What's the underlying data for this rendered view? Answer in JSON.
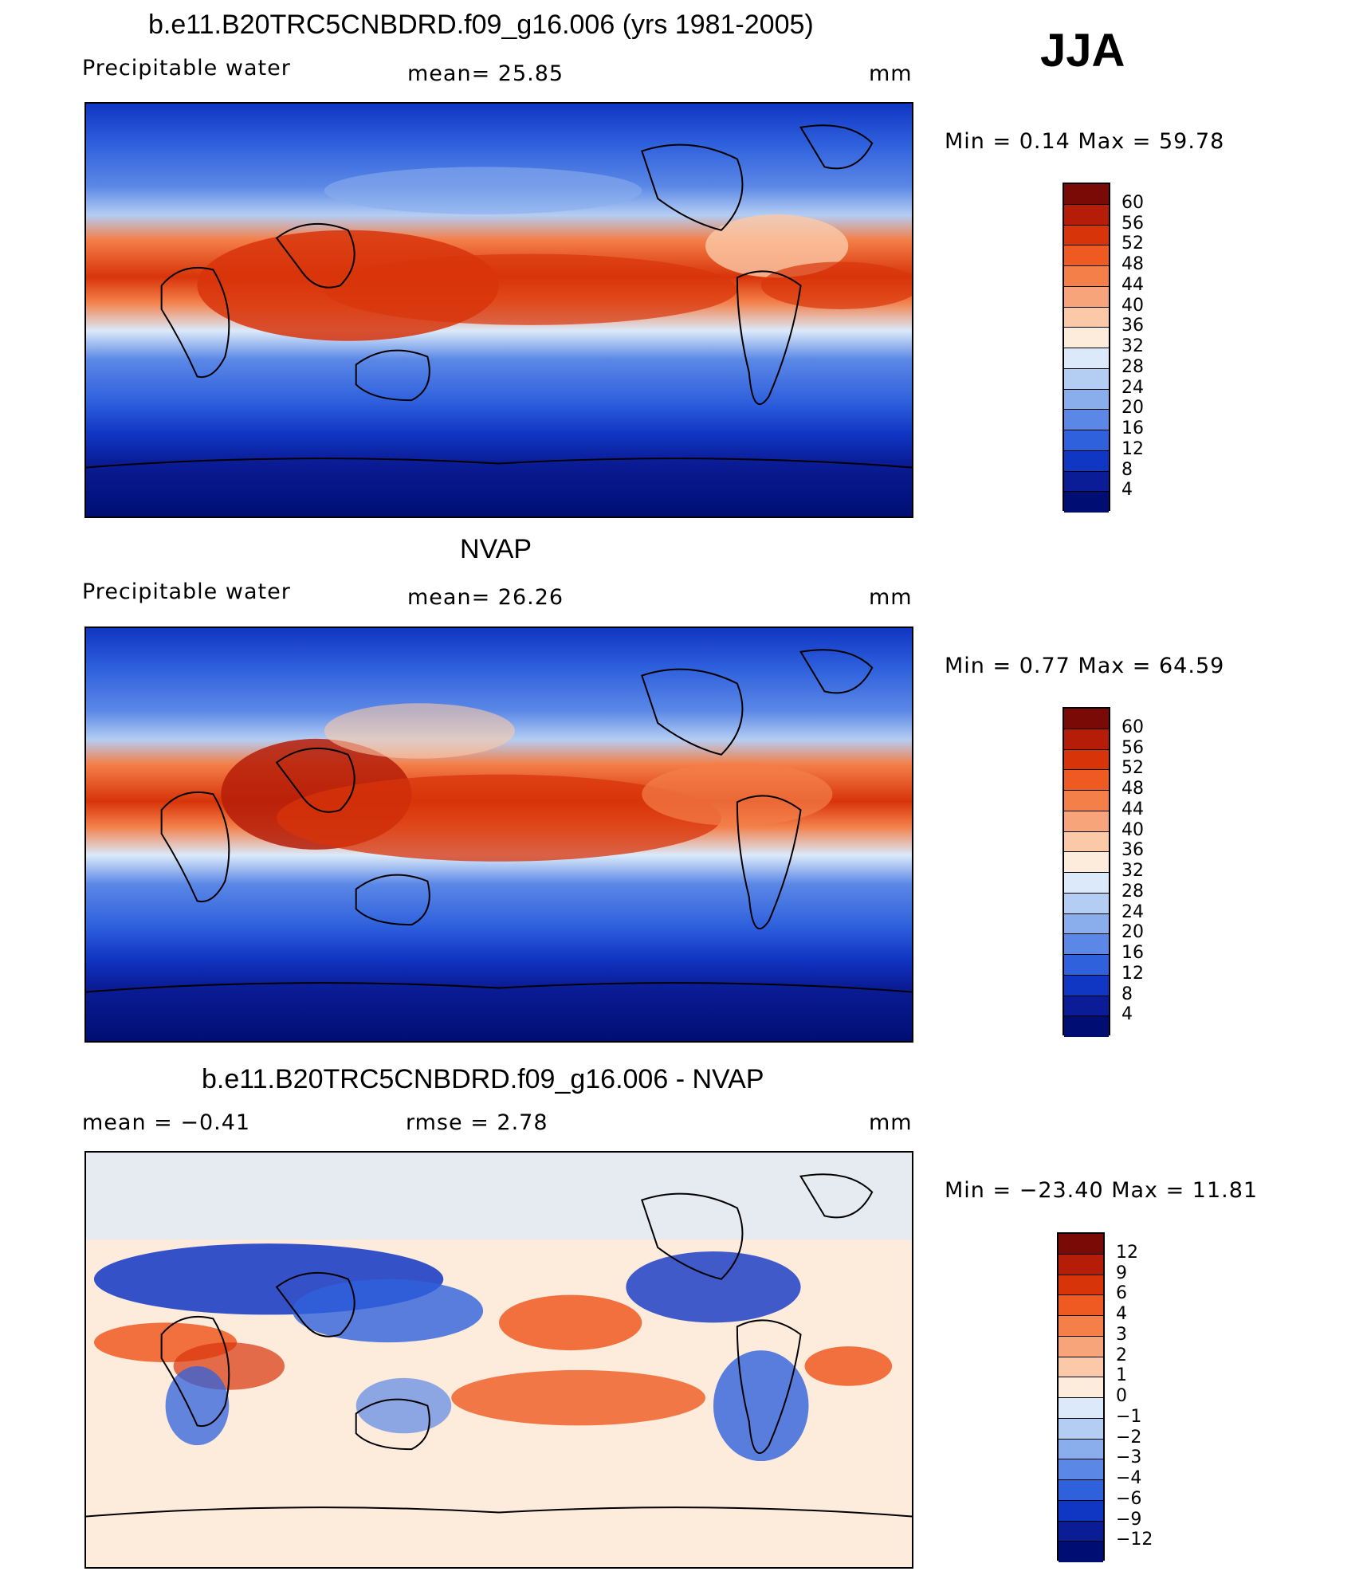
{
  "season": "JJA",
  "panels": [
    {
      "title": "b.e11.B20TRC5CNBDRD.f09_g16.006 (yrs 1981-2005)",
      "left_label": "Precipitable  water",
      "center_label": "mean=   25.85",
      "units": "mm",
      "minmax": "Min  =     0.14  Max  =    59.78"
    },
    {
      "title": "NVAP",
      "left_label": "Precipitable  water",
      "center_label": "mean=   26.26",
      "units": "mm",
      "minmax": "Min  =     0.77  Max  =    64.59"
    },
    {
      "title": "b.e11.B20TRC5CNBDRD.f09_g16.006 - NVAP",
      "left_label": "mean  =    −0.41",
      "center_label": "rmse  =     2.78",
      "units": "mm",
      "minmax": "Min  =  −23.40  Max  =    11.81"
    }
  ],
  "colorbars": {
    "pw_levels": [
      "60",
      "56",
      "52",
      "48",
      "44",
      "40",
      "36",
      "32",
      "28",
      "24",
      "20",
      "16",
      "12",
      "8",
      "4"
    ],
    "pw_colors": [
      "#7a0a05",
      "#b51d08",
      "#d8340a",
      "#ee5a22",
      "#f47f48",
      "#f8a47a",
      "#fbc9a8",
      "#fdebdc",
      "#dbe9fa",
      "#b4cdf3",
      "#8aaeec",
      "#5b88e6",
      "#2f61dd",
      "#1036c4",
      "#0a1c96",
      "#000e73"
    ],
    "diff_levels": [
      "12",
      "9",
      "6",
      "4",
      "3",
      "2",
      "1",
      "0",
      "−1",
      "−2",
      "−3",
      "−4",
      "−6",
      "−9",
      "−12"
    ],
    "diff_colors": [
      "#7a0a05",
      "#b51d08",
      "#d8340a",
      "#ee5a22",
      "#f47f48",
      "#f8a47a",
      "#fbc9a8",
      "#fdebdc",
      "#dbe9fa",
      "#b4cdf3",
      "#8aaeec",
      "#5b88e6",
      "#2f61dd",
      "#1036c4",
      "#0a1c96",
      "#000e73"
    ]
  }
}
